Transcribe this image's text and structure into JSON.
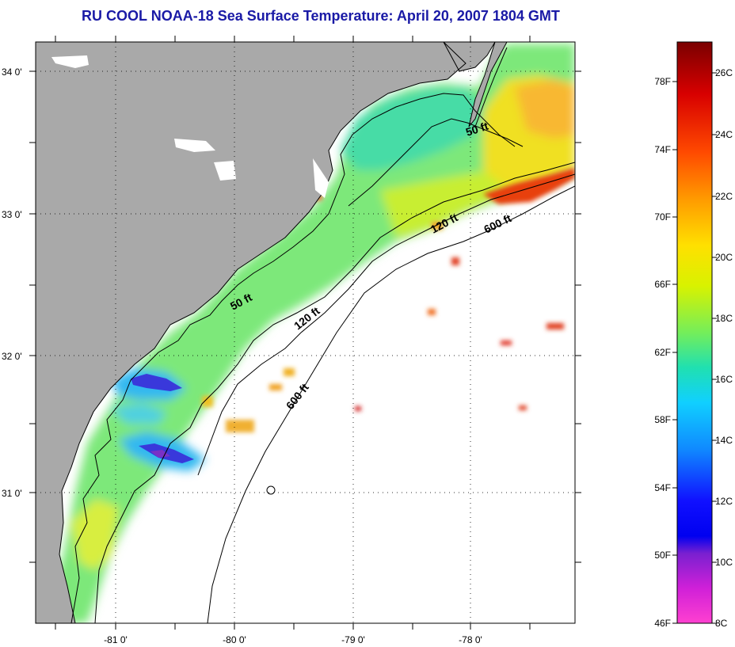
{
  "title": "RU COOL  NOAA-18  Sea Surface Temperature:  April 20, 2007 1804 GMT",
  "map": {
    "lat_labels": [
      "34 0'",
      "33 0'",
      "32 0'",
      "31 0'"
    ],
    "lon_labels": [
      "-81 0'",
      "-80 0'",
      "-79 0'",
      "-78 0'"
    ],
    "contour_labels": [
      {
        "text": "50 ft"
      },
      {
        "text": "50 ft"
      },
      {
        "text": "120 ft"
      },
      {
        "text": "120 ft"
      },
      {
        "text": "600 ft"
      },
      {
        "text": "600 ft"
      }
    ],
    "colors": {
      "land": "#a9a9a9",
      "water_nodata": "#ffffff"
    }
  },
  "colorbar": {
    "fahrenheit_labels": [
      "78F",
      "74F",
      "70F",
      "66F",
      "62F",
      "58F",
      "54F",
      "50F",
      "46F"
    ],
    "celsius_labels": [
      "26C",
      "24C",
      "22C",
      "20C",
      "18C",
      "16C",
      "14C",
      "12C",
      "10C",
      "8C"
    ],
    "gradient_colors_top_to_bottom": [
      "#7a0000",
      "#d80000",
      "#ff4a00",
      "#ff9a00",
      "#ffe000",
      "#d8f200",
      "#74ee5a",
      "#20e0b0",
      "#10d0ff",
      "#108aff",
      "#1010ff",
      "#0000f0",
      "#7a20d0",
      "#d020d8",
      "#ff40d0"
    ]
  }
}
